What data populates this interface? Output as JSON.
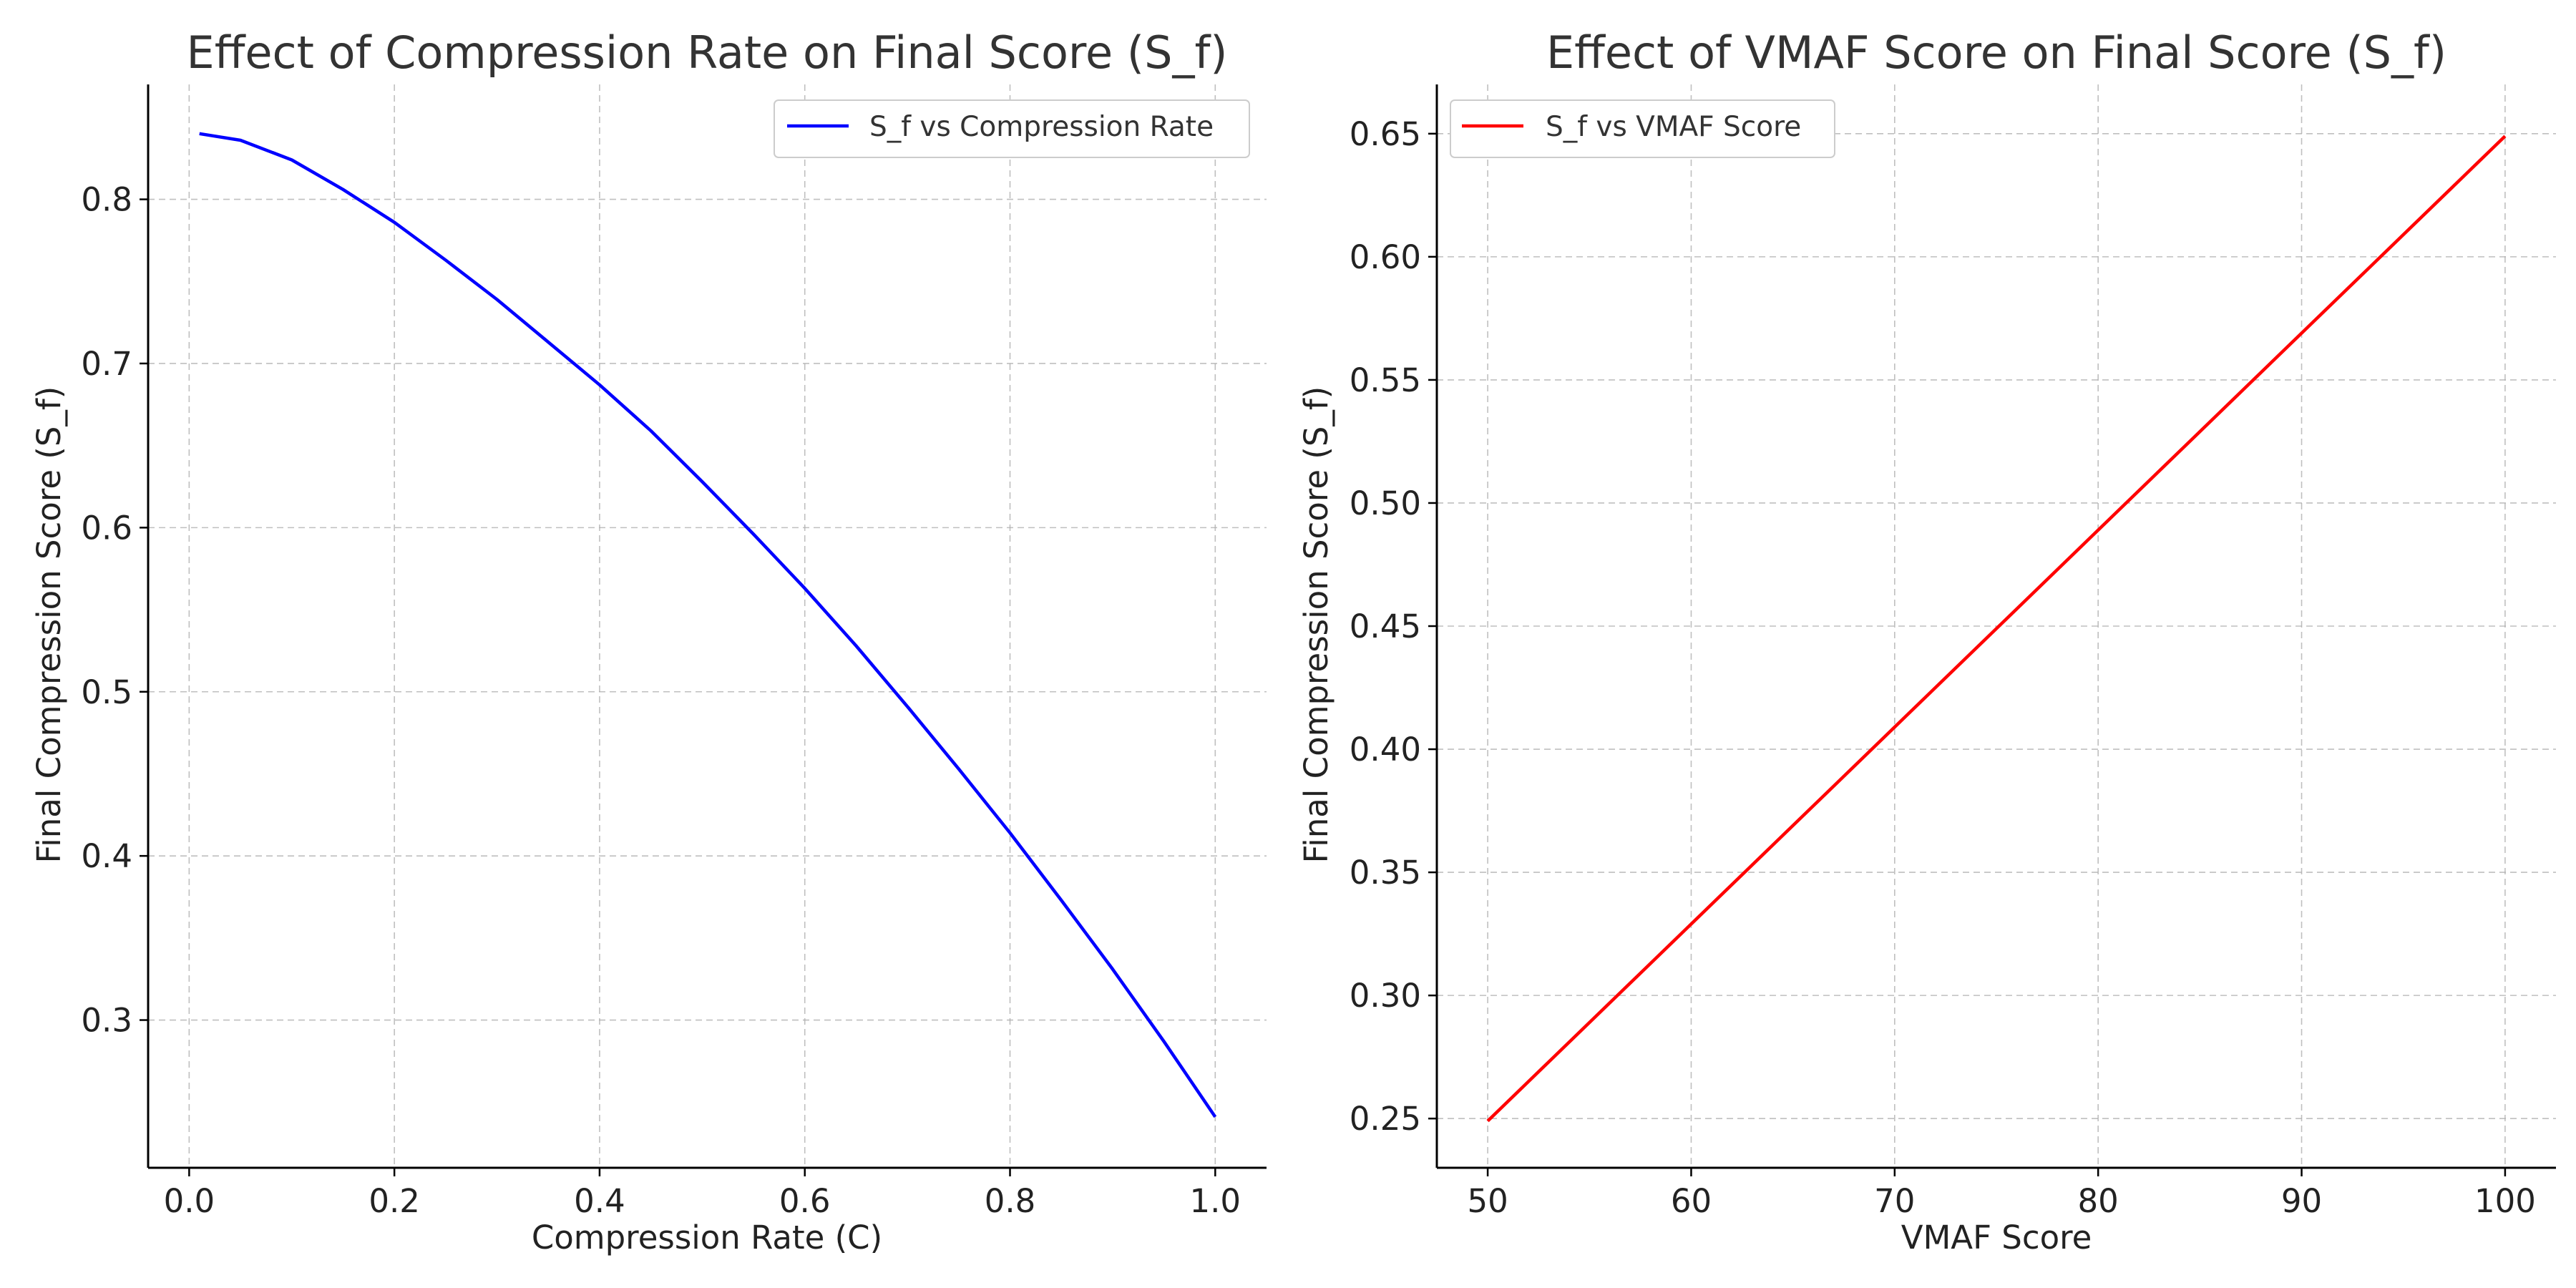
{
  "chart_data": [
    {
      "type": "line",
      "title": "Effect of Compression Rate on Final Score (S_f)",
      "xlabel": "Compression Rate (C)",
      "ylabel": "Final Compression Score (S_f)",
      "xlim": [
        -0.04,
        1.05
      ],
      "ylim": [
        0.21,
        0.87
      ],
      "xticks": [
        0.0,
        0.2,
        0.4,
        0.6,
        0.8,
        1.0
      ],
      "xtick_labels": [
        "0.0",
        "0.2",
        "0.4",
        "0.6",
        "0.8",
        "1.0"
      ],
      "yticks": [
        0.3,
        0.4,
        0.5,
        0.6,
        0.7,
        0.8
      ],
      "ytick_labels": [
        "0.3",
        "0.4",
        "0.5",
        "0.6",
        "0.7",
        "0.8"
      ],
      "grid": true,
      "legend_position": "top-right",
      "series": [
        {
          "name": "S_f vs Compression Rate",
          "color": "#0000ff",
          "x": [
            0.01,
            0.05,
            0.1,
            0.15,
            0.2,
            0.25,
            0.3,
            0.35,
            0.4,
            0.45,
            0.5,
            0.55,
            0.6,
            0.65,
            0.7,
            0.75,
            0.8,
            0.85,
            0.9,
            0.95,
            1.0
          ],
          "y": [
            0.84,
            0.836,
            0.824,
            0.806,
            0.786,
            0.763,
            0.739,
            0.713,
            0.687,
            0.659,
            0.628,
            0.596,
            0.563,
            0.528,
            0.491,
            0.453,
            0.414,
            0.373,
            0.331,
            0.287,
            0.241
          ]
        }
      ]
    },
    {
      "type": "line",
      "title": "Effect of VMAF Score on Final Score (S_f)",
      "xlabel": "VMAF Score",
      "ylabel": "Final Compression Score (S_f)",
      "xlim": [
        47.5,
        102.5
      ],
      "ylim": [
        0.23,
        0.67
      ],
      "xticks": [
        50,
        60,
        70,
        80,
        90,
        100
      ],
      "xtick_labels": [
        "50",
        "60",
        "70",
        "80",
        "90",
        "100"
      ],
      "yticks": [
        0.25,
        0.3,
        0.35,
        0.4,
        0.45,
        0.5,
        0.55,
        0.6,
        0.65
      ],
      "ytick_labels": [
        "0.25",
        "0.30",
        "0.35",
        "0.40",
        "0.45",
        "0.50",
        "0.55",
        "0.60",
        "0.65"
      ],
      "grid": true,
      "legend_position": "top-left",
      "series": [
        {
          "name": "S_f vs VMAF Score",
          "color": "#ff0000",
          "x": [
            50,
            100
          ],
          "y": [
            0.249,
            0.649
          ]
        }
      ]
    }
  ]
}
